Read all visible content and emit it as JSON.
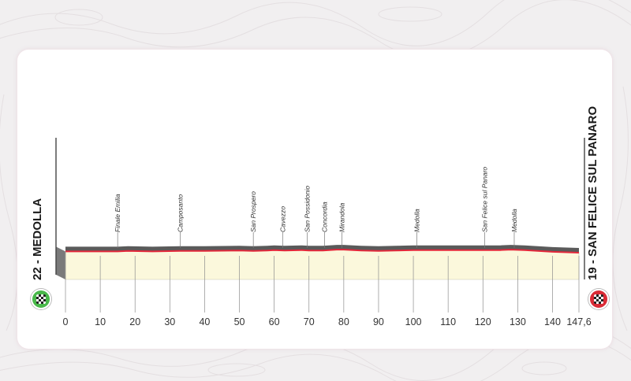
{
  "start": {
    "label": "22 - MEDOLLA",
    "color": "#49b84a",
    "icon": "checkered-flag-icon"
  },
  "finish": {
    "label": "19 - SAN FELICE SUL PANARO",
    "color": "#d92b36",
    "icon": "checkered-flag-icon"
  },
  "colors": {
    "profile_fill": "#fbf8dc",
    "profile_line": "#e3273a",
    "profile_top": "#5a5a5a",
    "grid": "#8d8d8d"
  },
  "chart_data": {
    "type": "area",
    "xlim": [
      0,
      147.6
    ],
    "tick_labels": [
      "0",
      "10",
      "20",
      "30",
      "40",
      "50",
      "60",
      "70",
      "80",
      "90",
      "100",
      "110",
      "120",
      "130",
      "140",
      "147,6"
    ],
    "tick_values": [
      0,
      10,
      20,
      30,
      40,
      50,
      60,
      70,
      80,
      90,
      100,
      110,
      120,
      130,
      140,
      147.6
    ],
    "profile": {
      "km": [
        0,
        10,
        15,
        18,
        25,
        33,
        40,
        50,
        54,
        58,
        60,
        63,
        68,
        70,
        74,
        78,
        80,
        85,
        90,
        95,
        100,
        105,
        110,
        115,
        120,
        125,
        128,
        132,
        140,
        147.6
      ],
      "alt": [
        22,
        22,
        22,
        23,
        22,
        23,
        23,
        24,
        23,
        24,
        25,
        24,
        25,
        24,
        24,
        26,
        26,
        24,
        23,
        24,
        25,
        25,
        25,
        25,
        25,
        25,
        26,
        25,
        21,
        19
      ]
    },
    "waypoints": [
      {
        "name": "Finale Emilia",
        "km": 15
      },
      {
        "name": "Camposanto",
        "km": 33
      },
      {
        "name": "San Prospero",
        "km": 54
      },
      {
        "name": "Cavezzo",
        "km": 62.5
      },
      {
        "name": "San Possidonio",
        "km": 69.5
      },
      {
        "name": "Concordia",
        "km": 74.5
      },
      {
        "name": "Mirandola",
        "km": 79.5
      },
      {
        "name": "Medolla",
        "km": 101
      },
      {
        "name": "San Felice sul Panaro",
        "km": 120.5
      },
      {
        "name": "Medolla",
        "km": 129
      }
    ]
  }
}
